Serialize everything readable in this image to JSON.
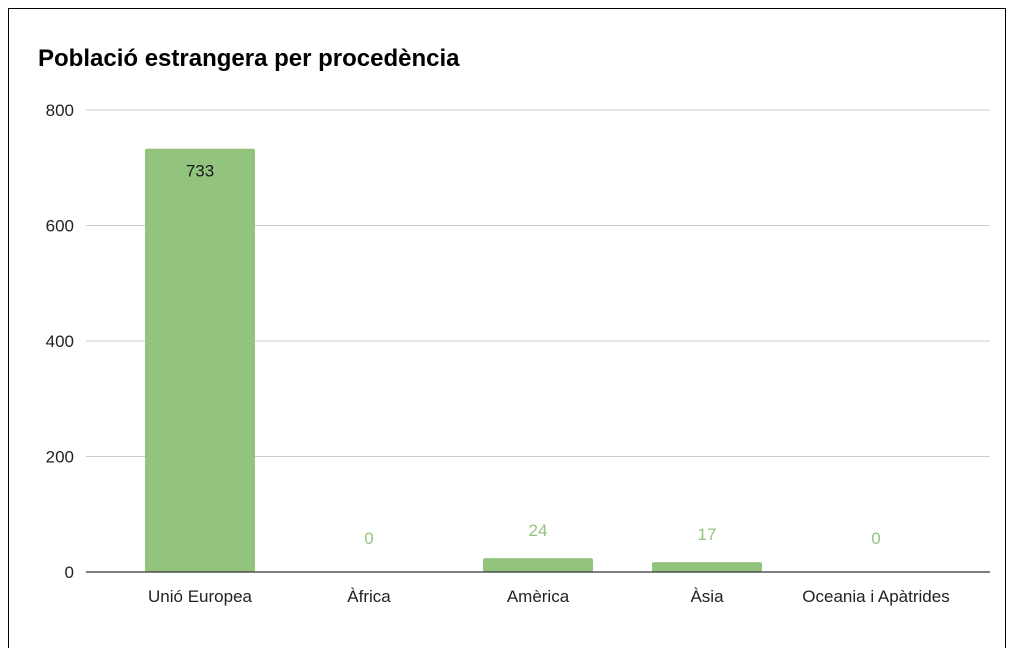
{
  "chart_data": {
    "type": "bar",
    "title": "Població estrangera per procedència",
    "xlabel": "",
    "ylabel": "",
    "categories": [
      "Unió Europea",
      "Àfrica",
      "Amèrica",
      "Àsia",
      "Oceania i Apàtrides"
    ],
    "values": [
      733,
      0,
      24,
      17,
      0
    ],
    "data_labels": [
      "733",
      "0",
      "24",
      "17",
      "0"
    ],
    "ylim": [
      0,
      800
    ],
    "yticks": [
      0,
      200,
      400,
      600,
      800
    ],
    "ytick_labels": [
      "0",
      "200",
      "400",
      "600",
      "800"
    ],
    "grid": true,
    "legend": "none",
    "colors": {
      "bar": "#93c47d",
      "label_inside": "#1a1a1a",
      "label_outside": "#93c47d",
      "grid": "#cccccc",
      "axis": "#333333"
    }
  }
}
